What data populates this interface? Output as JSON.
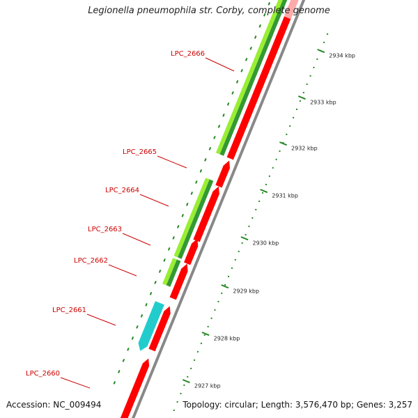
{
  "header": {
    "title": "Legionella pneumophila str. Corby, complete genome"
  },
  "footer": {
    "accession": "Accession: NC_009494",
    "summary": "Topology: circular; Length: 3,576,470 bp; Genes: 3,257"
  },
  "colors": {
    "backbone": "#888888",
    "cds_reverse": "#ff0000",
    "cds_forward_light": "#99ee33",
    "cds_forward_dark": "#339933",
    "cds_special": "#22cccc",
    "tick": "#228822",
    "gene_label": "#cc0000"
  },
  "genes": [
    {
      "name": "LPC_2666"
    },
    {
      "name": "LPC_2665"
    },
    {
      "name": "LPC_2664"
    },
    {
      "name": "LPC_2663"
    },
    {
      "name": "LPC_2662"
    },
    {
      "name": "LPC_2661"
    },
    {
      "name": "LPC_2660"
    }
  ],
  "scale_labels": [
    "2934 kbp",
    "2933 kbp",
    "2932 kbp",
    "2931 kbp",
    "2930 kbp",
    "2929 kbp",
    "2928 kbp",
    "2927 kbp"
  ]
}
